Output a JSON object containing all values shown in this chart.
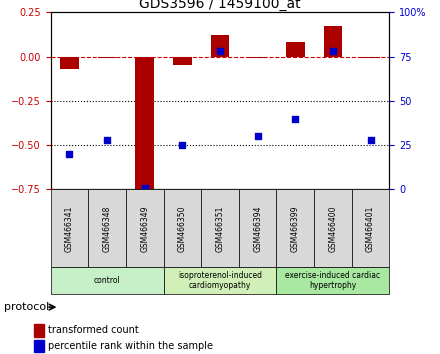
{
  "title": "GDS3596 / 1459100_at",
  "samples": [
    "GSM466341",
    "GSM466348",
    "GSM466349",
    "GSM466350",
    "GSM466351",
    "GSM466394",
    "GSM466399",
    "GSM466400",
    "GSM466401"
  ],
  "transformed_count": [
    -0.07,
    -0.01,
    -0.78,
    -0.05,
    0.12,
    -0.01,
    0.085,
    0.175,
    -0.005
  ],
  "percentile_rank_right": [
    20,
    28,
    1,
    25,
    78,
    30,
    40,
    78,
    28
  ],
  "ylim_left": [
    -0.75,
    0.25
  ],
  "ylim_right": [
    0,
    100
  ],
  "yticks_left": [
    -0.75,
    -0.5,
    -0.25,
    0.0,
    0.25
  ],
  "yticks_right": [
    0,
    25,
    50,
    75,
    100
  ],
  "dotted_lines": [
    -0.25,
    -0.5
  ],
  "bar_color": "#aa0000",
  "dot_color": "#0000cc",
  "groups": [
    {
      "label": "control",
      "start": 0,
      "end": 3,
      "color": "#c8f0c8"
    },
    {
      "label": "isoproterenol-induced\ncardiomyopathy",
      "start": 3,
      "end": 6,
      "color": "#d0f0b8"
    },
    {
      "label": "exercise-induced cardiac\nhypertrophy",
      "start": 6,
      "end": 9,
      "color": "#a8e8a0"
    }
  ],
  "legend_items": [
    {
      "label": "transformed count",
      "color": "#aa0000"
    },
    {
      "label": "percentile rank within the sample",
      "color": "#0000cc"
    }
  ],
  "protocol_label": "protocol",
  "bar_width": 0.5
}
